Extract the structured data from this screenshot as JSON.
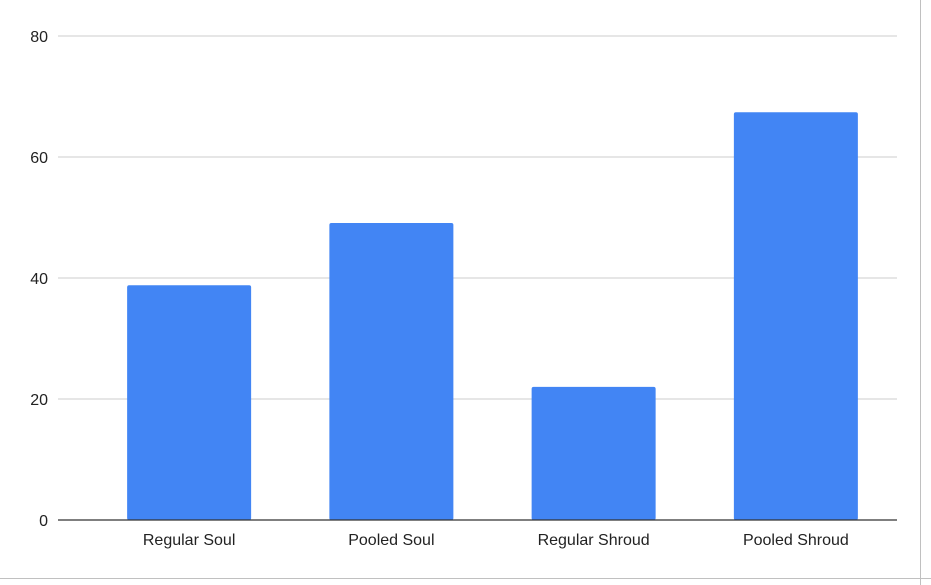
{
  "chart_data": {
    "type": "bar",
    "categories": [
      "Regular Soul",
      "Pooled Soul",
      "Regular Shroud",
      "Pooled Shroud"
    ],
    "values": [
      38.8,
      49.1,
      22.0,
      67.4
    ],
    "ylim": [
      0,
      80
    ],
    "yticks": [
      0,
      20,
      40,
      60,
      80
    ],
    "grid": true,
    "legend": "none",
    "colors": {
      "bar": "#4285f4",
      "grid": "#cccccc",
      "axis": "#333333",
      "text": "#222222"
    }
  }
}
